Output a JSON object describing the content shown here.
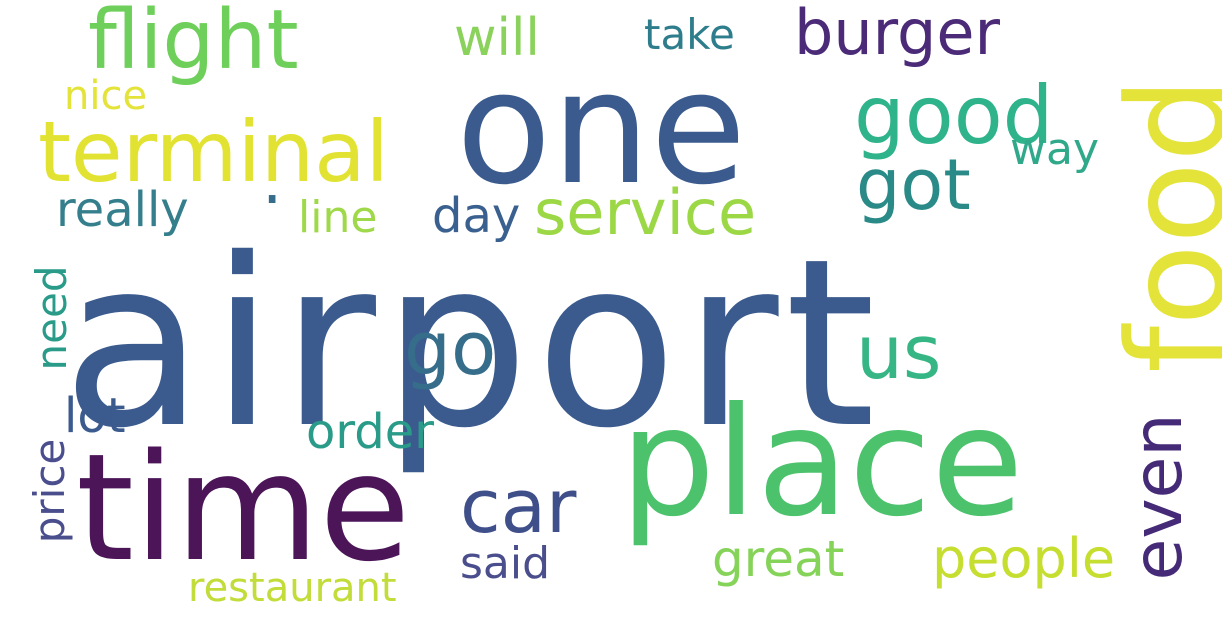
{
  "title": "Word cloud",
  "words": {
    "airport": {
      "text": "airport",
      "color": "#3b5b8e"
    },
    "food": {
      "text": "food",
      "color": "#e4e33a"
    },
    "one": {
      "text": "one",
      "color": "#3b5b8e"
    },
    "place": {
      "text": "place",
      "color": "#4cc26c"
    },
    "time": {
      "text": "time",
      "color": "#4b1558"
    },
    "flight": {
      "text": "flight",
      "color": "#6ecf5a"
    },
    "terminal": {
      "text": "terminal",
      "color": "#e2e232"
    },
    "burger": {
      "text": "burger",
      "color": "#4b2a78"
    },
    "good": {
      "text": "good",
      "color": "#2fb38a"
    },
    "got": {
      "text": "got",
      "color": "#2a8a87"
    },
    "service": {
      "text": "service",
      "color": "#9cd846"
    },
    "even": {
      "text": "even",
      "color": "#452a77"
    },
    "car": {
      "text": "car",
      "color": "#3f4f8a"
    },
    "go": {
      "text": "go",
      "color": "#356d8b"
    },
    "us": {
      "text": "us",
      "color": "#36b684"
    },
    "people": {
      "text": "people",
      "color": "#c6de2f"
    },
    "great": {
      "text": "great",
      "color": "#86d35a"
    },
    "order": {
      "text": "order",
      "color": "#2a9b89"
    },
    "said": {
      "text": "said",
      "color": "#4a4e8d"
    },
    "restaurant": {
      "text": "restaurant",
      "color": "#c2dc3a"
    },
    "lot": {
      "text": "lot",
      "color": "#3b5b8e"
    },
    "price": {
      "text": "price",
      "color": "#4a4e8d"
    },
    "need": {
      "text": "need",
      "color": "#2a9b89"
    },
    "really": {
      "text": "really",
      "color": "#357f8d"
    },
    "line": {
      "text": "line",
      "color": "#9fd94a"
    },
    "day": {
      "text": "day",
      "color": "#3a6090"
    },
    "will": {
      "text": "will",
      "color": "#8bd25c"
    },
    "take": {
      "text": "take",
      "color": "#2e7d8c"
    },
    "nice": {
      "text": "nice",
      "color": "#e4e33a"
    },
    "way": {
      "text": "way",
      "color": "#30a88a"
    },
    "dot": {
      "text": ".",
      "color": "#356d8b"
    }
  }
}
